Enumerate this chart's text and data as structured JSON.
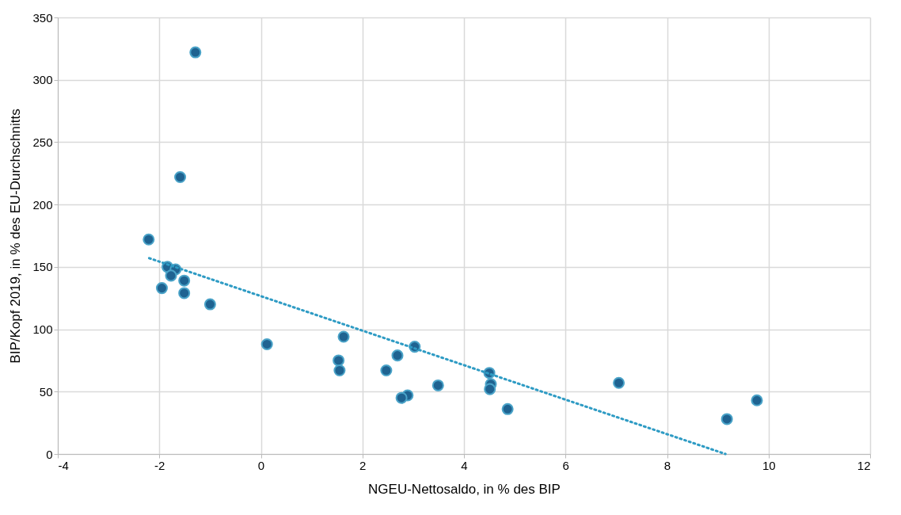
{
  "chart_data": {
    "type": "scatter",
    "xlabel": "NGEU-Nettosaldo, in % des BIP",
    "ylabel": "BIP/Kopf 2019, in % des EU-Durchschnitts",
    "xlim": [
      -4,
      12
    ],
    "xticks": [
      -4,
      -2,
      0,
      2,
      4,
      6,
      8,
      10,
      12
    ],
    "ylim": [
      0,
      350
    ],
    "yticks": [
      0,
      50,
      100,
      150,
      200,
      250,
      300,
      350
    ],
    "grid": true,
    "series": [
      {
        "marker": "circle",
        "color": "#1f6391",
        "x": [
          -1.29,
          -1.59,
          -2.21,
          -1.84,
          -1.68,
          -1.77,
          -1.51,
          -1.95,
          -1.51,
          -1.0,
          0.12,
          1.63,
          1.53,
          1.55,
          2.69,
          3.03,
          2.47,
          2.89,
          2.77,
          3.49,
          4.5,
          4.53,
          4.51,
          4.86,
          7.05,
          9.18,
          9.77
        ],
        "values": [
          322,
          222,
          172,
          150,
          148,
          143,
          139,
          133,
          129,
          120,
          88,
          94,
          75,
          67,
          79,
          86,
          67,
          47,
          45,
          55,
          65,
          56,
          52,
          36,
          57,
          28,
          43
        ]
      },
      {
        "type": "line",
        "color": "#2e9bc4",
        "line_style": "dotted",
        "x": [
          -2.2,
          9.15
        ],
        "values": [
          157,
          0
        ]
      }
    ]
  }
}
